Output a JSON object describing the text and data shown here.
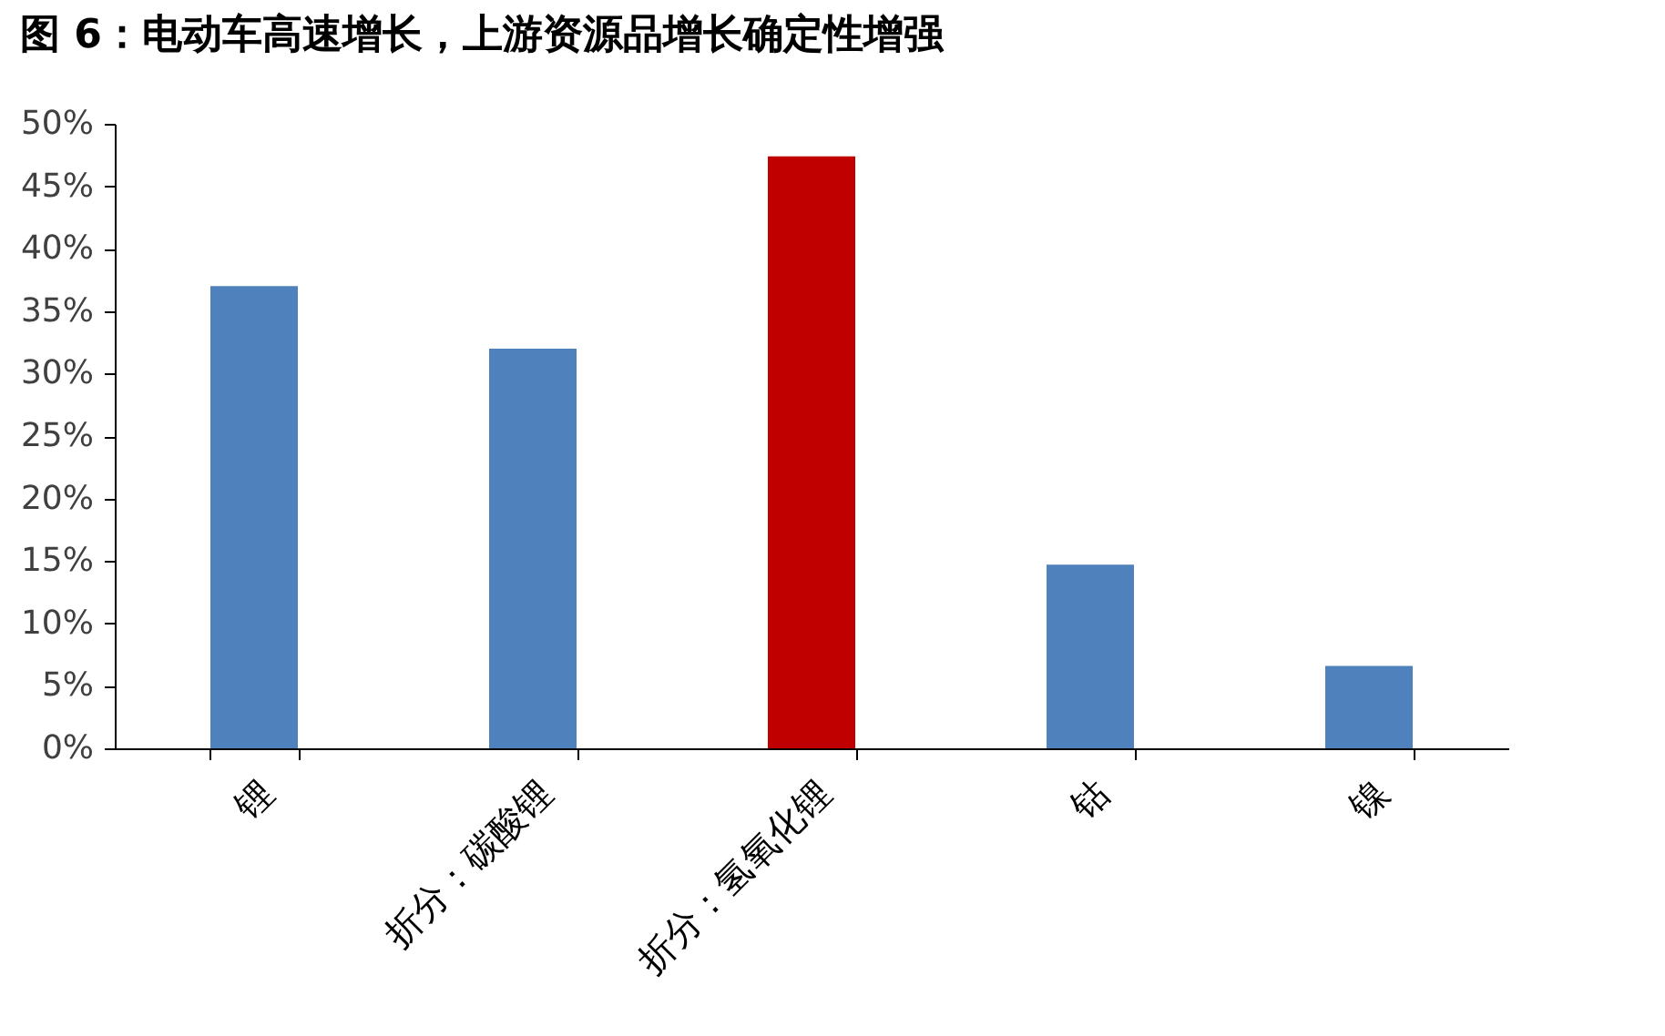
{
  "chart_data": {
    "type": "bar",
    "title": "图 6：电动车高速增长，上游资源品增长确定性增强",
    "categories": [
      "锂",
      "折分：碳酸锂",
      "折分：氢氧化锂",
      "钴",
      "镍"
    ],
    "values": [
      37,
      32,
      47.4,
      14.7,
      6.6
    ],
    "colors": [
      "#4f81bd",
      "#4f81bd",
      "#c00000",
      "#4f81bd",
      "#4f81bd"
    ],
    "ylim": [
      0,
      50
    ],
    "yticks": [
      {
        "value": 0,
        "label": "0%"
      },
      {
        "value": 5,
        "label": "5%"
      },
      {
        "value": 10,
        "label": "10%"
      },
      {
        "value": 15,
        "label": "15%"
      },
      {
        "value": 20,
        "label": "20%"
      },
      {
        "value": 25,
        "label": "25%"
      },
      {
        "value": 30,
        "label": "30%"
      },
      {
        "value": 35,
        "label": "35%"
      },
      {
        "value": 40,
        "label": "40%"
      },
      {
        "value": 45,
        "label": "45%"
      },
      {
        "value": 50,
        "label": "50%"
      }
    ],
    "grid": false
  }
}
